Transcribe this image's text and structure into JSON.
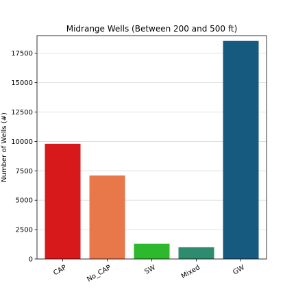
{
  "chart_data": {
    "type": "bar",
    "title": "Midrange Wells (Between 200 and 500 ft)",
    "xlabel": "",
    "ylabel": "Number of Wells (#)",
    "categories": [
      "CAP",
      "No_CAP",
      "SW",
      "Mixed",
      "GW"
    ],
    "values": [
      9800,
      7100,
      1300,
      1000,
      18550
    ],
    "colors": [
      "#d7191c",
      "#e8784a",
      "#2db82d",
      "#2e8b6e",
      "#175a80"
    ],
    "ylim": [
      0,
      19000
    ],
    "yticks": [
      0,
      2500,
      5000,
      7500,
      10000,
      12500,
      15000,
      17500
    ],
    "grid": "y"
  }
}
